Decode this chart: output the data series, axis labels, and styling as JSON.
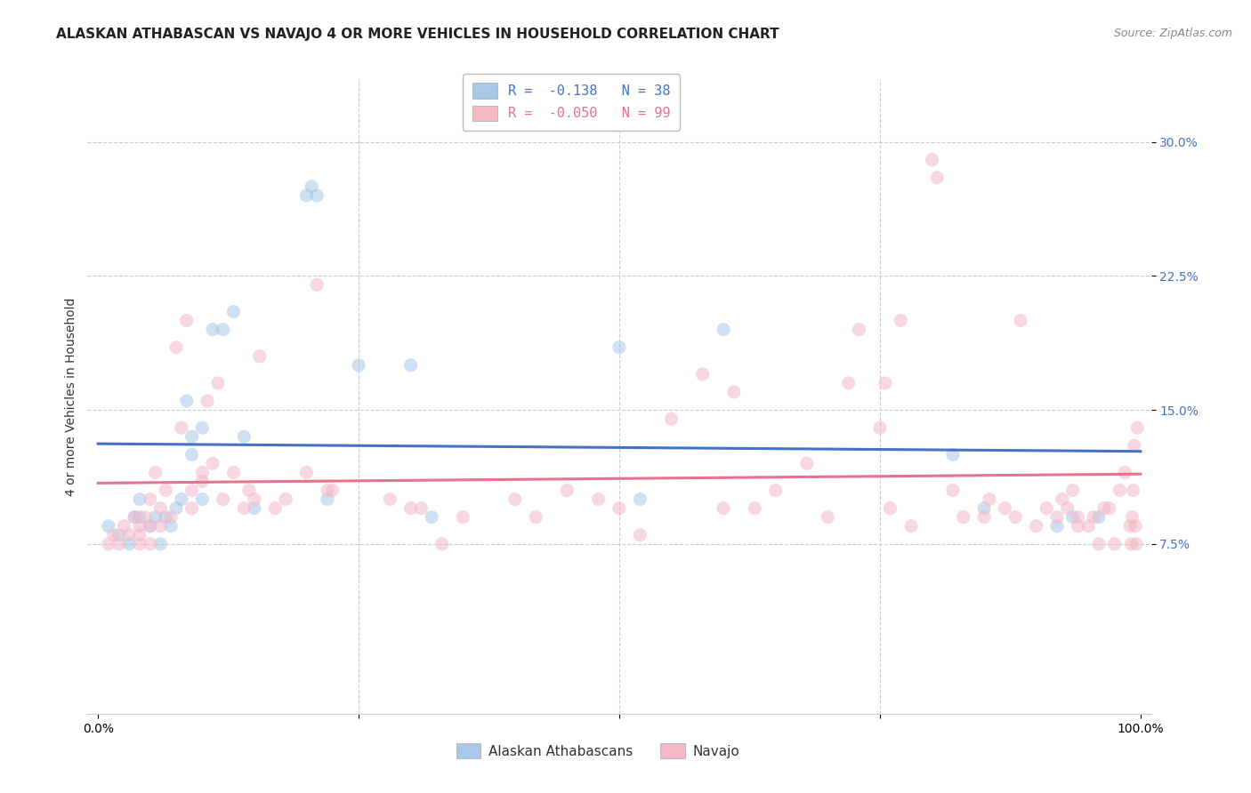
{
  "title": "ALASKAN ATHABASCAN VS NAVAJO 4 OR MORE VEHICLES IN HOUSEHOLD CORRELATION CHART",
  "source": "Source: ZipAtlas.com",
  "ylabel": "4 or more Vehicles in Household",
  "ytick_labels": [
    "7.5%",
    "15.0%",
    "22.5%",
    "30.0%"
  ],
  "ytick_values": [
    0.075,
    0.15,
    0.225,
    0.3
  ],
  "xlim": [
    -0.01,
    1.01
  ],
  "ylim": [
    -0.02,
    0.335
  ],
  "legend_entry1": "R =  -0.138   N = 38",
  "legend_entry2": "R =  -0.050   N = 99",
  "color_blue": "#a8c8e8",
  "color_pink": "#f4b8c8",
  "line_color_blue": "#4472c4",
  "line_color_pink": "#e87090",
  "background_color": "#ffffff",
  "grid_color": "#cccccc",
  "title_fontsize": 11,
  "label_fontsize": 10,
  "tick_fontsize": 10,
  "legend_fontsize": 11,
  "marker_size": 120,
  "marker_alpha": 0.55,
  "blue_x": [
    0.01,
    0.02,
    0.03,
    0.035,
    0.04,
    0.04,
    0.05,
    0.055,
    0.06,
    0.065,
    0.07,
    0.075,
    0.08,
    0.085,
    0.09,
    0.09,
    0.1,
    0.1,
    0.11,
    0.12,
    0.13,
    0.14,
    0.15,
    0.2,
    0.205,
    0.21,
    0.22,
    0.25,
    0.3,
    0.32,
    0.5,
    0.52,
    0.6,
    0.82,
    0.85,
    0.92,
    0.935,
    0.96
  ],
  "blue_y": [
    0.085,
    0.08,
    0.075,
    0.09,
    0.09,
    0.1,
    0.085,
    0.09,
    0.075,
    0.09,
    0.085,
    0.095,
    0.1,
    0.155,
    0.125,
    0.135,
    0.1,
    0.14,
    0.195,
    0.195,
    0.205,
    0.135,
    0.095,
    0.27,
    0.275,
    0.27,
    0.1,
    0.175,
    0.175,
    0.09,
    0.185,
    0.1,
    0.195,
    0.125,
    0.095,
    0.085,
    0.09,
    0.09
  ],
  "pink_x": [
    0.01,
    0.015,
    0.02,
    0.025,
    0.03,
    0.035,
    0.04,
    0.04,
    0.04,
    0.045,
    0.05,
    0.05,
    0.05,
    0.055,
    0.06,
    0.06,
    0.065,
    0.07,
    0.075,
    0.08,
    0.085,
    0.09,
    0.09,
    0.1,
    0.1,
    0.105,
    0.11,
    0.115,
    0.12,
    0.13,
    0.14,
    0.145,
    0.15,
    0.155,
    0.17,
    0.18,
    0.2,
    0.21,
    0.22,
    0.225,
    0.28,
    0.3,
    0.31,
    0.33,
    0.35,
    0.4,
    0.42,
    0.45,
    0.48,
    0.5,
    0.52,
    0.55,
    0.58,
    0.6,
    0.61,
    0.63,
    0.65,
    0.68,
    0.7,
    0.72,
    0.73,
    0.75,
    0.755,
    0.76,
    0.77,
    0.78,
    0.8,
    0.805,
    0.82,
    0.83,
    0.85,
    0.855,
    0.87,
    0.88,
    0.885,
    0.9,
    0.91,
    0.92,
    0.925,
    0.93,
    0.935,
    0.94,
    0.94,
    0.95,
    0.955,
    0.96,
    0.965,
    0.97,
    0.975,
    0.98,
    0.985,
    0.99,
    0.991,
    0.992,
    0.993,
    0.994,
    0.995,
    0.996,
    0.997
  ],
  "pink_y": [
    0.075,
    0.08,
    0.075,
    0.085,
    0.08,
    0.09,
    0.075,
    0.08,
    0.085,
    0.09,
    0.075,
    0.085,
    0.1,
    0.115,
    0.085,
    0.095,
    0.105,
    0.09,
    0.185,
    0.14,
    0.2,
    0.095,
    0.105,
    0.11,
    0.115,
    0.155,
    0.12,
    0.165,
    0.1,
    0.115,
    0.095,
    0.105,
    0.1,
    0.18,
    0.095,
    0.1,
    0.115,
    0.22,
    0.105,
    0.105,
    0.1,
    0.095,
    0.095,
    0.075,
    0.09,
    0.1,
    0.09,
    0.105,
    0.1,
    0.095,
    0.08,
    0.145,
    0.17,
    0.095,
    0.16,
    0.095,
    0.105,
    0.12,
    0.09,
    0.165,
    0.195,
    0.14,
    0.165,
    0.095,
    0.2,
    0.085,
    0.29,
    0.28,
    0.105,
    0.09,
    0.09,
    0.1,
    0.095,
    0.09,
    0.2,
    0.085,
    0.095,
    0.09,
    0.1,
    0.095,
    0.105,
    0.085,
    0.09,
    0.085,
    0.09,
    0.075,
    0.095,
    0.095,
    0.075,
    0.105,
    0.115,
    0.085,
    0.075,
    0.09,
    0.105,
    0.13,
    0.085,
    0.075,
    0.14
  ]
}
